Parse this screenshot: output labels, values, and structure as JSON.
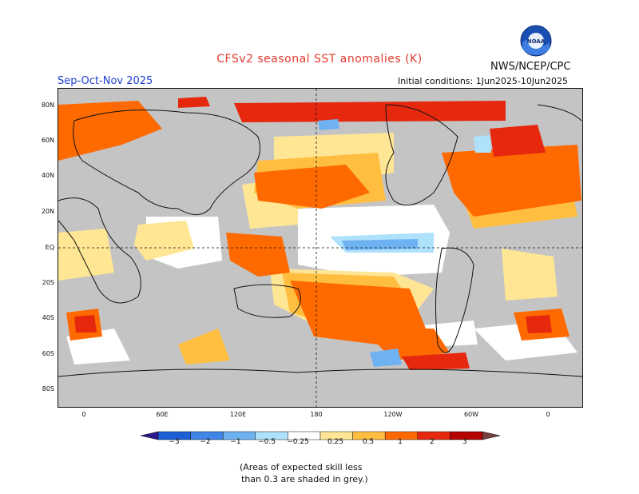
{
  "header": {
    "title": "CFSv2 seasonal SST anomalies (K)",
    "period": "Sep-Oct-Nov 2025",
    "initial_conditions": "Initial conditions: 1Jun2025-10Jun2025",
    "agency": "NWS/NCEP/CPC",
    "logo_text": "NOAA"
  },
  "map": {
    "lat_labels": [
      "80N",
      "60N",
      "40N",
      "20N",
      "EQ",
      "20S",
      "40S",
      "60S",
      "80S"
    ],
    "lon_labels": [
      "0",
      "60E",
      "120E",
      "180",
      "120W",
      "60W",
      "0"
    ]
  },
  "colorbar": {
    "labels": [
      "−3",
      "−2",
      "−1",
      "−0.5",
      "−0.25",
      "0.25",
      "0.5",
      "1",
      "2",
      "3"
    ],
    "colors": [
      "#2a1a8c",
      "#1c5ed6",
      "#3f86e8",
      "#6fb2f2",
      "#aee1fb",
      "#ffffff",
      "#ffe694",
      "#ffbe40",
      "#ff6a00",
      "#e5280e",
      "#b40000",
      "#7a4040"
    ]
  },
  "palette": {
    "grey_mask": "#c4c4c4",
    "no_signal": "#ffffff",
    "weak_warm": "#ffe694",
    "moderate_warm": "#ffbe40",
    "strong_warm": "#ff6a00",
    "very_strong_warm": "#e5280e",
    "extreme_warm": "#b40000",
    "weak_cool": "#aee1fb",
    "moderate_cool": "#6fb2f2",
    "strong_cool": "#3f86e8"
  },
  "footnote": {
    "line1": "(Areas of expected skill less",
    "line2": "than 0.3 are shaded in grey.)"
  }
}
